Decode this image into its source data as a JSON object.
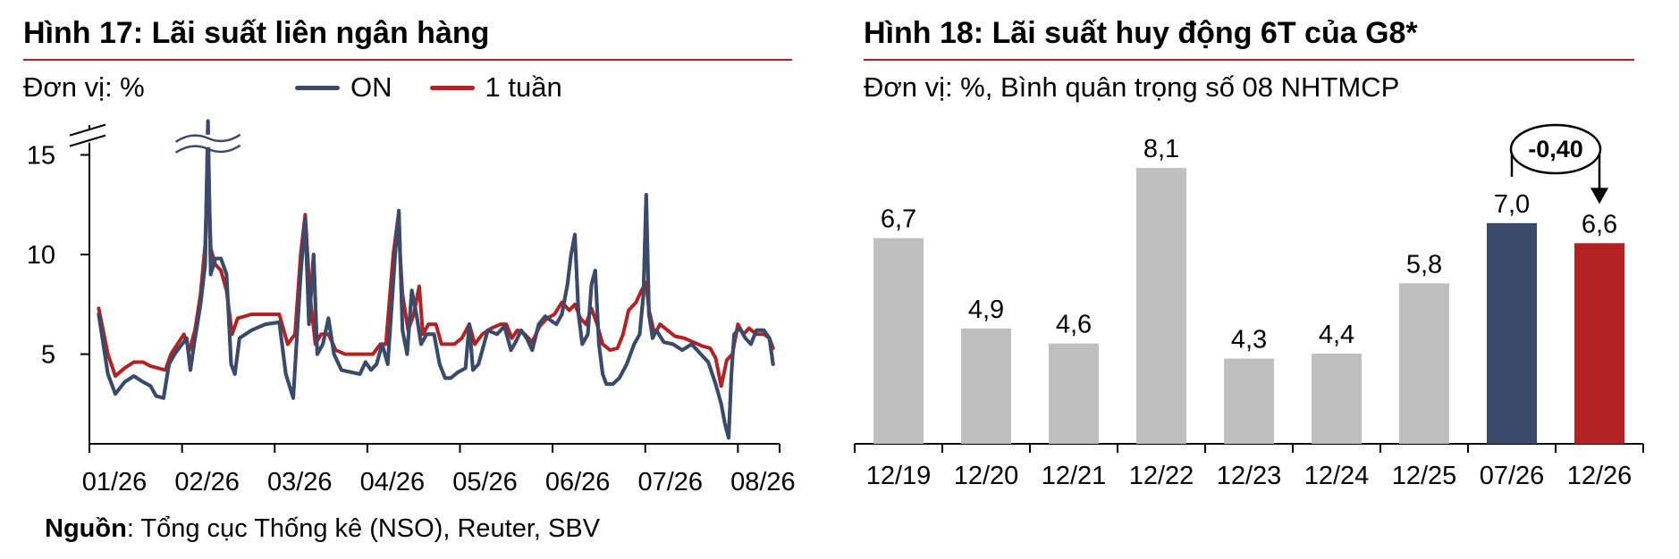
{
  "left": {
    "title": "Hình 17: Lãi suất liên ngân hàng",
    "unit": "Đơn vị: %",
    "legend": [
      {
        "label": "ON",
        "color": "#3b4a6b"
      },
      {
        "label": "1 tuần",
        "color": "#b22222"
      }
    ],
    "source_label": "Nguồn",
    "source_text": ": Tổng cục Thống kê (NSO), Reuter, SBV"
  },
  "right": {
    "title": "Hình 18: Lãi suất huy động 6T của G8*",
    "unit": "Đơn vị: %, Bình quân trọng số 08 NHTMCP",
    "annotation": "-0,40"
  },
  "chart_data": [
    {
      "type": "line",
      "title": "Hình 17: Lãi suất liên ngân hàng",
      "ylabel": "Đơn vị: %",
      "ylim": [
        0.5,
        16.5
      ],
      "yticks": [
        5,
        10,
        15
      ],
      "y_axis_break": true,
      "x_ticks": [
        "01/26",
        "02/26",
        "03/26",
        "04/26",
        "05/26",
        "06/26",
        "07/26",
        "08/26"
      ],
      "xlim": [
        0,
        7.45
      ],
      "legend_position": "top",
      "series": [
        {
          "name": "ON",
          "color": "#3b4a6b",
          "points": [
            [
              0.1,
              7.0
            ],
            [
              0.2,
              4.0
            ],
            [
              0.28,
              3.0
            ],
            [
              0.38,
              3.6
            ],
            [
              0.48,
              3.9
            ],
            [
              0.58,
              3.6
            ],
            [
              0.66,
              3.4
            ],
            [
              0.72,
              2.9
            ],
            [
              0.8,
              2.8
            ],
            [
              0.86,
              4.5
            ],
            [
              0.92,
              5.0
            ],
            [
              1.0,
              5.5
            ],
            [
              1.05,
              5.8
            ],
            [
              1.09,
              4.2
            ],
            [
              1.13,
              5.5
            ],
            [
              1.2,
              7.5
            ],
            [
              1.25,
              9.5
            ],
            [
              1.28,
              16.7
            ],
            [
              1.31,
              9.0
            ],
            [
              1.36,
              9.8
            ],
            [
              1.42,
              9.8
            ],
            [
              1.48,
              9.0
            ],
            [
              1.53,
              4.5
            ],
            [
              1.57,
              4.0
            ],
            [
              1.62,
              5.8
            ],
            [
              1.75,
              6.2
            ],
            [
              1.9,
              6.5
            ],
            [
              2.05,
              6.6
            ],
            [
              2.12,
              4.0
            ],
            [
              2.2,
              2.8
            ],
            [
              2.28,
              9.0
            ],
            [
              2.33,
              11.8
            ],
            [
              2.37,
              6.5
            ],
            [
              2.42,
              10.0
            ],
            [
              2.46,
              5.0
            ],
            [
              2.52,
              5.5
            ],
            [
              2.58,
              6.8
            ],
            [
              2.64,
              5.0
            ],
            [
              2.72,
              4.2
            ],
            [
              2.82,
              4.1
            ],
            [
              2.92,
              4.0
            ],
            [
              2.98,
              4.6
            ],
            [
              3.04,
              4.2
            ],
            [
              3.1,
              4.5
            ],
            [
              3.16,
              5.5
            ],
            [
              3.22,
              4.5
            ],
            [
              3.3,
              10.0
            ],
            [
              3.34,
              12.2
            ],
            [
              3.38,
              6.2
            ],
            [
              3.43,
              5.0
            ],
            [
              3.48,
              8.2
            ],
            [
              3.53,
              7.0
            ],
            [
              3.58,
              5.5
            ],
            [
              3.64,
              6.0
            ],
            [
              3.72,
              6.0
            ],
            [
              3.78,
              4.5
            ],
            [
              3.84,
              3.8
            ],
            [
              3.9,
              3.8
            ],
            [
              3.98,
              4.1
            ],
            [
              4.06,
              4.3
            ],
            [
              4.1,
              6.5
            ],
            [
              4.14,
              4.2
            ],
            [
              4.2,
              4.5
            ],
            [
              4.3,
              6.2
            ],
            [
              4.4,
              6.0
            ],
            [
              4.48,
              6.4
            ],
            [
              4.55,
              5.2
            ],
            [
              4.6,
              5.6
            ],
            [
              4.66,
              6.2
            ],
            [
              4.72,
              5.8
            ],
            [
              4.78,
              5.2
            ],
            [
              4.85,
              6.5
            ],
            [
              4.92,
              6.9
            ],
            [
              4.98,
              6.7
            ],
            [
              5.04,
              6.5
            ],
            [
              5.1,
              7.0
            ],
            [
              5.16,
              8.5
            ],
            [
              5.2,
              10.0
            ],
            [
              5.24,
              11.0
            ],
            [
              5.28,
              7.0
            ],
            [
              5.32,
              5.5
            ],
            [
              5.38,
              6.0
            ],
            [
              5.42,
              8.5
            ],
            [
              5.46,
              9.2
            ],
            [
              5.5,
              5.5
            ],
            [
              5.54,
              4.0
            ],
            [
              5.58,
              3.5
            ],
            [
              5.65,
              3.5
            ],
            [
              5.72,
              3.8
            ],
            [
              5.8,
              4.5
            ],
            [
              5.88,
              5.5
            ],
            [
              5.94,
              6.0
            ],
            [
              5.98,
              8.0
            ],
            [
              6.01,
              13.0
            ],
            [
              6.04,
              7.0
            ],
            [
              6.08,
              5.8
            ],
            [
              6.12,
              6.2
            ],
            [
              6.2,
              5.6
            ],
            [
              6.3,
              5.5
            ],
            [
              6.4,
              5.2
            ],
            [
              6.5,
              5.5
            ],
            [
              6.6,
              5.0
            ],
            [
              6.68,
              4.6
            ],
            [
              6.76,
              3.5
            ],
            [
              6.82,
              2.5
            ],
            [
              6.86,
              1.5
            ],
            [
              6.9,
              0.8
            ],
            [
              6.93,
              4.0
            ],
            [
              6.96,
              6.0
            ],
            [
              7.02,
              6.3
            ],
            [
              7.08,
              5.8
            ],
            [
              7.14,
              5.5
            ],
            [
              7.2,
              6.2
            ],
            [
              7.28,
              6.2
            ],
            [
              7.34,
              5.8
            ],
            [
              7.38,
              4.5
            ]
          ]
        },
        {
          "name": "1 tuần",
          "color": "#b22222",
          "points": [
            [
              0.1,
              7.3
            ],
            [
              0.2,
              5.0
            ],
            [
              0.28,
              3.9
            ],
            [
              0.38,
              4.3
            ],
            [
              0.48,
              4.6
            ],
            [
              0.58,
              4.6
            ],
            [
              0.66,
              4.4
            ],
            [
              0.74,
              4.3
            ],
            [
              0.82,
              4.2
            ],
            [
              0.88,
              5.0
            ],
            [
              0.95,
              5.5
            ],
            [
              1.02,
              6.0
            ],
            [
              1.08,
              5.2
            ],
            [
              1.14,
              6.2
            ],
            [
              1.2,
              8.0
            ],
            [
              1.25,
              10.5
            ],
            [
              1.28,
              15.2
            ],
            [
              1.31,
              10.3
            ],
            [
              1.36,
              9.5
            ],
            [
              1.42,
              9.2
            ],
            [
              1.48,
              8.2
            ],
            [
              1.54,
              6.0
            ],
            [
              1.6,
              6.8
            ],
            [
              1.75,
              7.0
            ],
            [
              1.9,
              7.0
            ],
            [
              2.05,
              7.0
            ],
            [
              2.14,
              5.5
            ],
            [
              2.22,
              6.0
            ],
            [
              2.28,
              10.0
            ],
            [
              2.33,
              12.0
            ],
            [
              2.38,
              8.0
            ],
            [
              2.44,
              5.5
            ],
            [
              2.5,
              6.0
            ],
            [
              2.58,
              6.0
            ],
            [
              2.66,
              5.2
            ],
            [
              2.76,
              5.0
            ],
            [
              2.86,
              5.0
            ],
            [
              2.96,
              5.0
            ],
            [
              3.06,
              5.0
            ],
            [
              3.14,
              5.5
            ],
            [
              3.2,
              5.5
            ],
            [
              3.28,
              10.0
            ],
            [
              3.33,
              11.8
            ],
            [
              3.38,
              8.0
            ],
            [
              3.44,
              6.2
            ],
            [
              3.5,
              7.0
            ],
            [
              3.56,
              8.4
            ],
            [
              3.6,
              6.0
            ],
            [
              3.66,
              6.5
            ],
            [
              3.74,
              6.5
            ],
            [
              3.8,
              5.5
            ],
            [
              3.86,
              5.5
            ],
            [
              3.94,
              5.5
            ],
            [
              4.02,
              5.8
            ],
            [
              4.1,
              6.5
            ],
            [
              4.16,
              5.5
            ],
            [
              4.24,
              6.0
            ],
            [
              4.34,
              6.3
            ],
            [
              4.44,
              6.5
            ],
            [
              4.5,
              6.5
            ],
            [
              4.56,
              5.8
            ],
            [
              4.62,
              6.2
            ],
            [
              4.7,
              6.0
            ],
            [
              4.78,
              5.6
            ],
            [
              4.86,
              6.4
            ],
            [
              4.94,
              6.8
            ],
            [
              5.02,
              7.0
            ],
            [
              5.1,
              7.6
            ],
            [
              5.18,
              7.2
            ],
            [
              5.24,
              7.5
            ],
            [
              5.3,
              6.8
            ],
            [
              5.36,
              6.5
            ],
            [
              5.42,
              7.3
            ],
            [
              5.48,
              6.5
            ],
            [
              5.54,
              5.5
            ],
            [
              5.62,
              5.2
            ],
            [
              5.7,
              5.3
            ],
            [
              5.76,
              6.0
            ],
            [
              5.82,
              7.2
            ],
            [
              5.9,
              7.6
            ],
            [
              5.96,
              8.2
            ],
            [
              6.01,
              8.6
            ],
            [
              6.04,
              7.2
            ],
            [
              6.1,
              6.0
            ],
            [
              6.16,
              6.5
            ],
            [
              6.24,
              6.2
            ],
            [
              6.32,
              5.9
            ],
            [
              6.42,
              5.8
            ],
            [
              6.52,
              5.6
            ],
            [
              6.62,
              5.4
            ],
            [
              6.7,
              5.3
            ],
            [
              6.76,
              4.8
            ],
            [
              6.82,
              3.4
            ],
            [
              6.88,
              4.7
            ],
            [
              6.94,
              5.0
            ],
            [
              7.0,
              6.5
            ],
            [
              7.06,
              6.0
            ],
            [
              7.12,
              6.3
            ],
            [
              7.2,
              6.0
            ],
            [
              7.28,
              6.0
            ],
            [
              7.34,
              5.8
            ],
            [
              7.38,
              5.3
            ]
          ]
        }
      ]
    },
    {
      "type": "bar",
      "title": "Hình 18: Lãi suất huy động 6T của G8*",
      "ylabel": "Đơn vị: %, Bình quân trọng số 08 NHTMCP",
      "categories": [
        "12/19",
        "12/20",
        "12/21",
        "12/22",
        "12/23",
        "12/24",
        "12/25",
        "07/26",
        "12/26"
      ],
      "values": [
        6.7,
        4.9,
        4.6,
        8.1,
        4.3,
        4.4,
        5.8,
        7.0,
        6.6
      ],
      "value_labels": [
        "6,7",
        "4,9",
        "4,6",
        "8,1",
        "4,3",
        "4,4",
        "5,8",
        "7,0",
        "6,6"
      ],
      "colors": [
        "#bfbfbf",
        "#bfbfbf",
        "#bfbfbf",
        "#bfbfbf",
        "#bfbfbf",
        "#bfbfbf",
        "#bfbfbf",
        "#3b4a6b",
        "#b22222"
      ],
      "ylim": [
        2.6,
        8.6
      ],
      "annotation": {
        "text": "-0,40",
        "from": "07/26",
        "to": "12/26"
      }
    }
  ]
}
